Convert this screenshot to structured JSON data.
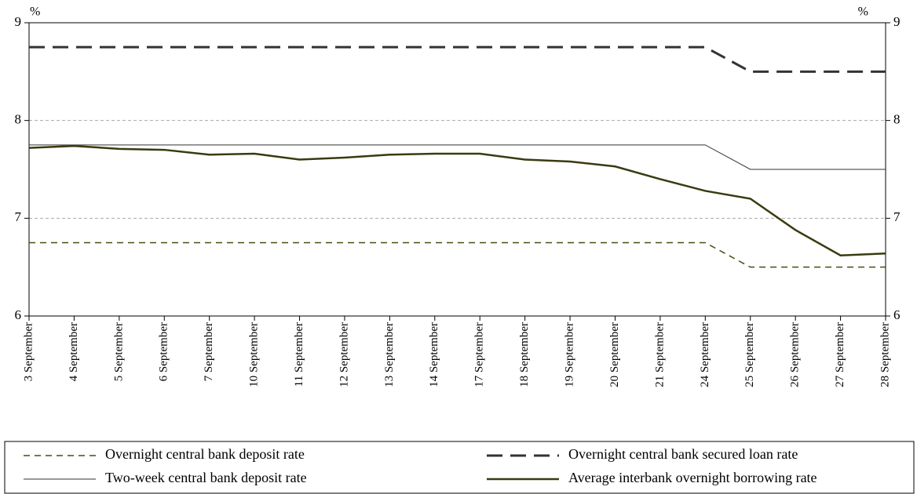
{
  "chart_data": {
    "type": "line",
    "ylabel": "%",
    "y2label": "%",
    "categories": [
      "3 September",
      "4 September",
      "5 September",
      "6 September",
      "7 September",
      "10 September",
      "11 September",
      "12 September",
      "13 September",
      "14 September",
      "17 September",
      "18 September",
      "19 September",
      "20 September",
      "21 September",
      "24 September",
      "25 September",
      "26 September",
      "27 September",
      "28 September"
    ],
    "series": [
      {
        "name": "Overnight central bank deposit rate",
        "color": "#4a4a10",
        "style": "dashed-thin",
        "values": [
          6.75,
          6.75,
          6.75,
          6.75,
          6.75,
          6.75,
          6.75,
          6.75,
          6.75,
          6.75,
          6.75,
          6.75,
          6.75,
          6.75,
          6.75,
          6.75,
          6.5,
          6.5,
          6.5,
          6.5
        ]
      },
      {
        "name": "Overnight central bank secured loan rate",
        "color": "#333333",
        "style": "dashed-thick",
        "values": [
          8.75,
          8.75,
          8.75,
          8.75,
          8.75,
          8.75,
          8.75,
          8.75,
          8.75,
          8.75,
          8.75,
          8.75,
          8.75,
          8.75,
          8.75,
          8.75,
          8.5,
          8.5,
          8.5,
          8.5
        ]
      },
      {
        "name": "Two-week central bank deposit rate",
        "color": "#333333",
        "style": "solid-thin",
        "values": [
          7.75,
          7.75,
          7.75,
          7.75,
          7.75,
          7.75,
          7.75,
          7.75,
          7.75,
          7.75,
          7.75,
          7.75,
          7.75,
          7.75,
          7.75,
          7.75,
          7.5,
          7.5,
          7.5,
          7.5
        ]
      },
      {
        "name": "Average interbank overnight borrowing rate",
        "color": "#3a3a10",
        "style": "solid-thick",
        "values": [
          7.72,
          7.74,
          7.71,
          7.7,
          7.65,
          7.66,
          7.6,
          7.62,
          7.65,
          7.66,
          7.66,
          7.6,
          7.58,
          7.53,
          7.4,
          7.28,
          7.2,
          6.88,
          6.62,
          6.64
        ]
      }
    ],
    "ylim": [
      6,
      9
    ],
    "yticks": [
      6,
      7,
      8,
      9
    ],
    "y2lim": [
      6,
      9
    ],
    "y2ticks": [
      6,
      7,
      8,
      9
    ],
    "grid": true,
    "legend": "bottom"
  }
}
